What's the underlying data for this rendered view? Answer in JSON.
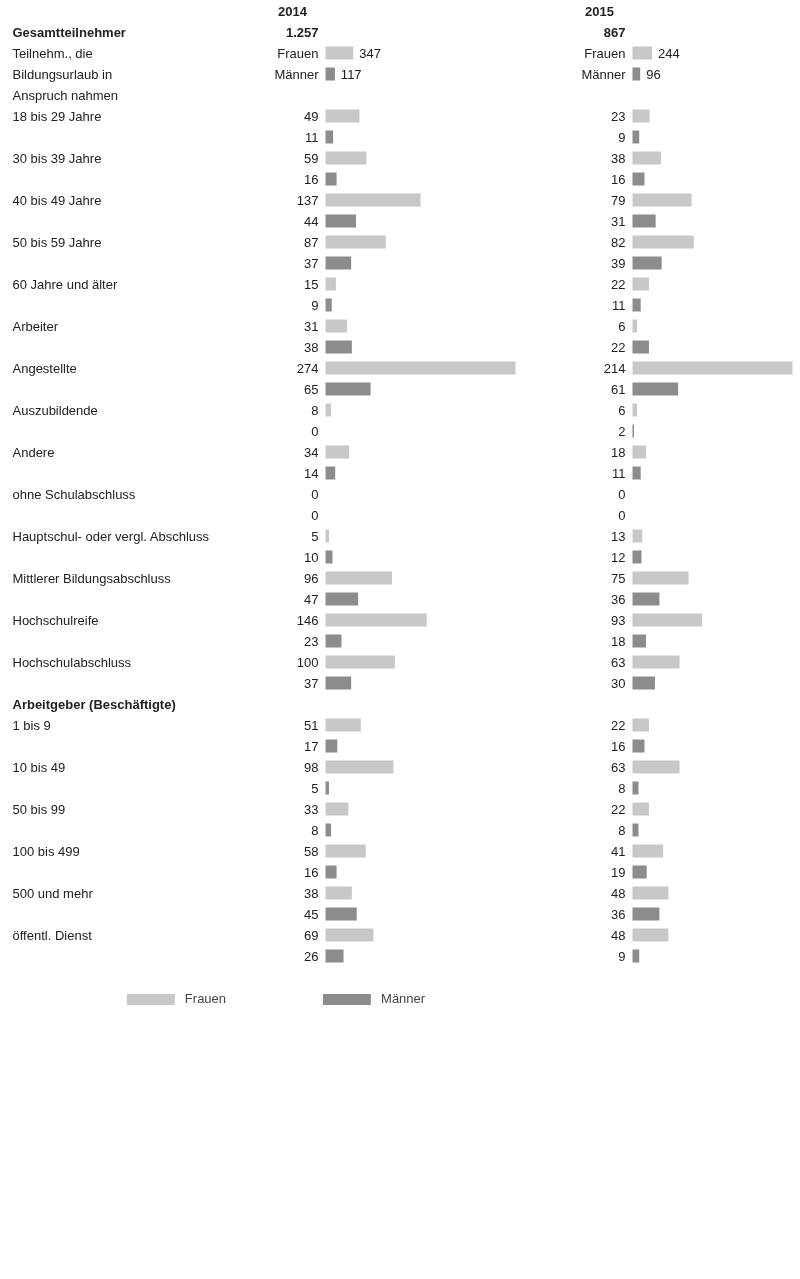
{
  "chart_data": [
    {
      "type": "bar",
      "orientation": "horizontal",
      "title": "2014",
      "categories": [
        "Frauen",
        "Männer"
      ],
      "series": [
        {
          "color": "#c8c8c8",
          "values": [
            347,
            null
          ]
        },
        {
          "color": "#8c8c8c",
          "values": [
            null,
            117
          ]
        }
      ],
      "data_labels": true,
      "tick_labels": "y",
      "annotations": [
        "Gesamtteilnehmer",
        "1.257",
        "Teilnehm., die Bildungsurlaub in Anspruch nahmen"
      ]
    },
    {
      "type": "bar",
      "orientation": "horizontal",
      "title": "2015",
      "categories": [
        "Frauen",
        "Männer"
      ],
      "series": [
        {
          "color": "#c8c8c8",
          "values": [
            244,
            null
          ]
        },
        {
          "color": "#8c8c8c",
          "values": [
            null,
            96
          ]
        }
      ],
      "data_labels": true,
      "tick_labels": "y",
      "annotations": [
        "867"
      ]
    },
    {
      "type": "bar",
      "orientation": "horizontal",
      "categories": [
        "18 bis 29 Jahre",
        null,
        "30 bis 39 Jahre",
        null,
        "40 bis 49 Jahre",
        null,
        "50 bis 59 Jahre",
        null,
        "60 Jahre und älter",
        null,
        "Arbeiter",
        null,
        "Angestellte",
        null,
        "Auszubildende",
        null,
        "Andere",
        null,
        "ohne Schulabschluss",
        null,
        "Hauptschul- oder vergl. Abschluss",
        null,
        "Mittlerer Bildungsabschluss",
        null,
        "Hochschulreife",
        null,
        "Hochschulabschluss",
        null,
        "Arbeitgeber (Beschäftigte)",
        "1 bis 9",
        null,
        "10 bis 49",
        null,
        "50 bis 99",
        null,
        "100 bis 499",
        null,
        "500 und mehr",
        null,
        "öffentl. Dienst",
        null
      ],
      "series": [
        {
          "name": "Frauen",
          "color": "#c8c8c8",
          "values": [
            49,
            null,
            59,
            null,
            137,
            null,
            87,
            null,
            15,
            null,
            31,
            null,
            274,
            null,
            8,
            null,
            34,
            null,
            0,
            null,
            5,
            null,
            96,
            null,
            146,
            null,
            100,
            null,
            null,
            51,
            null,
            98,
            null,
            33,
            null,
            58,
            null,
            38,
            null,
            69,
            null
          ]
        },
        {
          "name": "Männer",
          "color": "#8c8c8c",
          "values": [
            null,
            11,
            null,
            16,
            null,
            44,
            null,
            37,
            null,
            9,
            null,
            38,
            null,
            65,
            null,
            0,
            null,
            14,
            null,
            0,
            null,
            10,
            null,
            47,
            null,
            23,
            null,
            37,
            null,
            null,
            17,
            null,
            5,
            null,
            8,
            null,
            16,
            null,
            45,
            null,
            26
          ]
        }
      ],
      "data_labels": true,
      "tick_labels": "y",
      "legend": "bottom"
    },
    {
      "type": "bar",
      "orientation": "horizontal",
      "categories": [
        null,
        null,
        null,
        null,
        null,
        null,
        null,
        null,
        null,
        null,
        null,
        null,
        null,
        null,
        null,
        null,
        null,
        null,
        null,
        null,
        null,
        null,
        null,
        null,
        null,
        null,
        null,
        null,
        null,
        null,
        null,
        null,
        null,
        null,
        null,
        null,
        null,
        null,
        null,
        null,
        null
      ],
      "series": [
        {
          "color": "#c8c8c8",
          "values": [
            23,
            null,
            38,
            null,
            79,
            null,
            82,
            null,
            22,
            null,
            6,
            null,
            214,
            null,
            6,
            null,
            18,
            null,
            0,
            null,
            13,
            null,
            75,
            null,
            93,
            null,
            63,
            null,
            null,
            22,
            null,
            63,
            null,
            22,
            null,
            41,
            null,
            48,
            null,
            48,
            null
          ]
        },
        {
          "color": "#8c8c8c",
          "values": [
            null,
            9,
            null,
            16,
            null,
            31,
            null,
            39,
            null,
            11,
            null,
            22,
            null,
            61,
            null,
            2,
            null,
            11,
            null,
            0,
            null,
            12,
            null,
            36,
            null,
            18,
            null,
            30,
            null,
            null,
            16,
            null,
            8,
            null,
            8,
            null,
            19,
            null,
            36,
            null,
            9
          ]
        }
      ],
      "data_labels": true,
      "tick_labels": false
    }
  ]
}
